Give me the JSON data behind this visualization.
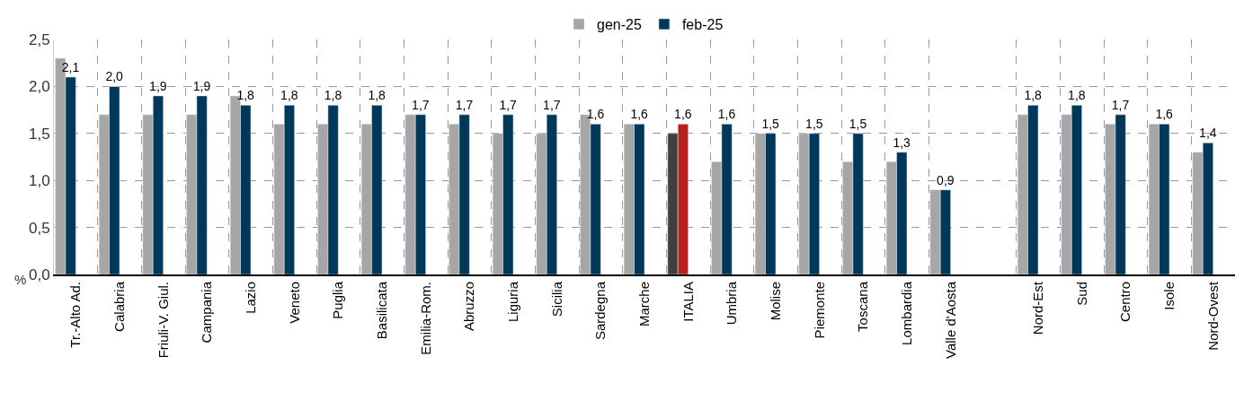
{
  "chart_data": {
    "type": "bar",
    "ylabel": "%",
    "categories": [
      "Tr.-Alto Ad.",
      "Calabria",
      "Friuli-V. Giul.",
      "Campania",
      "Lazio",
      "Veneto",
      "Puglia",
      "Basilicata",
      "Emilia-Rom.",
      "Abruzzo",
      "Liguria",
      "Sicilia",
      "Sardegna",
      "Marche",
      "ITALIA",
      "Umbria",
      "Molise",
      "Piemonte",
      "Toscana",
      "Lombardia",
      "Valle d'Aosta",
      null,
      "Nord-Est",
      "Sud",
      "Centro",
      "Isole",
      "Nord-Ovest"
    ],
    "series": [
      {
        "name": "gen-25",
        "color": "#a6a6a6",
        "colors": [
          "#a6a6a6",
          "#a6a6a6",
          "#a6a6a6",
          "#a6a6a6",
          "#a6a6a6",
          "#a6a6a6",
          "#a6a6a6",
          "#a6a6a6",
          "#a6a6a6",
          "#a6a6a6",
          "#a6a6a6",
          "#a6a6a6",
          "#a6a6a6",
          "#a6a6a6",
          "#404040",
          "#a6a6a6",
          "#a6a6a6",
          "#a6a6a6",
          "#a6a6a6",
          "#a6a6a6",
          "#a6a6a6",
          "#a6a6a6",
          "#a6a6a6",
          "#a6a6a6",
          "#a6a6a6",
          "#a6a6a6",
          "#a6a6a6"
        ],
        "values": [
          2.3,
          1.7,
          1.7,
          1.7,
          1.9,
          1.6,
          1.6,
          1.6,
          1.7,
          1.6,
          1.5,
          1.5,
          1.7,
          1.6,
          1.5,
          1.2,
          1.5,
          1.5,
          1.2,
          1.2,
          0.9,
          null,
          1.7,
          1.7,
          1.6,
          1.6,
          1.3
        ]
      },
      {
        "name": "feb-25",
        "color": "#003859",
        "colors": [
          "#003859",
          "#003859",
          "#003859",
          "#003859",
          "#003859",
          "#003859",
          "#003859",
          "#003859",
          "#003859",
          "#003859",
          "#003859",
          "#003859",
          "#003859",
          "#003859",
          "#b5221a",
          "#003859",
          "#003859",
          "#003859",
          "#003859",
          "#003859",
          "#003859",
          "#003859",
          "#003859",
          "#003859",
          "#003859",
          "#003859",
          "#003859"
        ],
        "values": [
          2.1,
          2.0,
          1.9,
          1.9,
          1.8,
          1.8,
          1.8,
          1.8,
          1.7,
          1.7,
          1.7,
          1.7,
          1.6,
          1.6,
          1.6,
          1.6,
          1.5,
          1.5,
          1.5,
          1.3,
          0.9,
          null,
          1.8,
          1.8,
          1.7,
          1.6,
          1.4
        ],
        "value_labels": [
          "2,1",
          "2,0",
          "1,9",
          "1,9",
          "1,8",
          "1,8",
          "1,8",
          "1,8",
          "1,7",
          "1,7",
          "1,7",
          "1,7",
          "1,6",
          "1,6",
          "1,6",
          "1,6",
          "1,5",
          "1,5",
          "1,5",
          "1,3",
          "0,9",
          null,
          "1,8",
          "1,8",
          "1,7",
          "1,6",
          "1,4"
        ]
      }
    ],
    "ylim": [
      0,
      2.5
    ],
    "yticks": [
      {
        "value": 0,
        "label": "0,0"
      },
      {
        "value": 0.5,
        "label": "0,5"
      },
      {
        "value": 1,
        "label": "1,0"
      },
      {
        "value": 1.5,
        "label": "1,5"
      },
      {
        "value": 2,
        "label": "2,0"
      },
      {
        "value": 2.5,
        "label": "2,5"
      }
    ],
    "grid": true,
    "legend": "top"
  }
}
